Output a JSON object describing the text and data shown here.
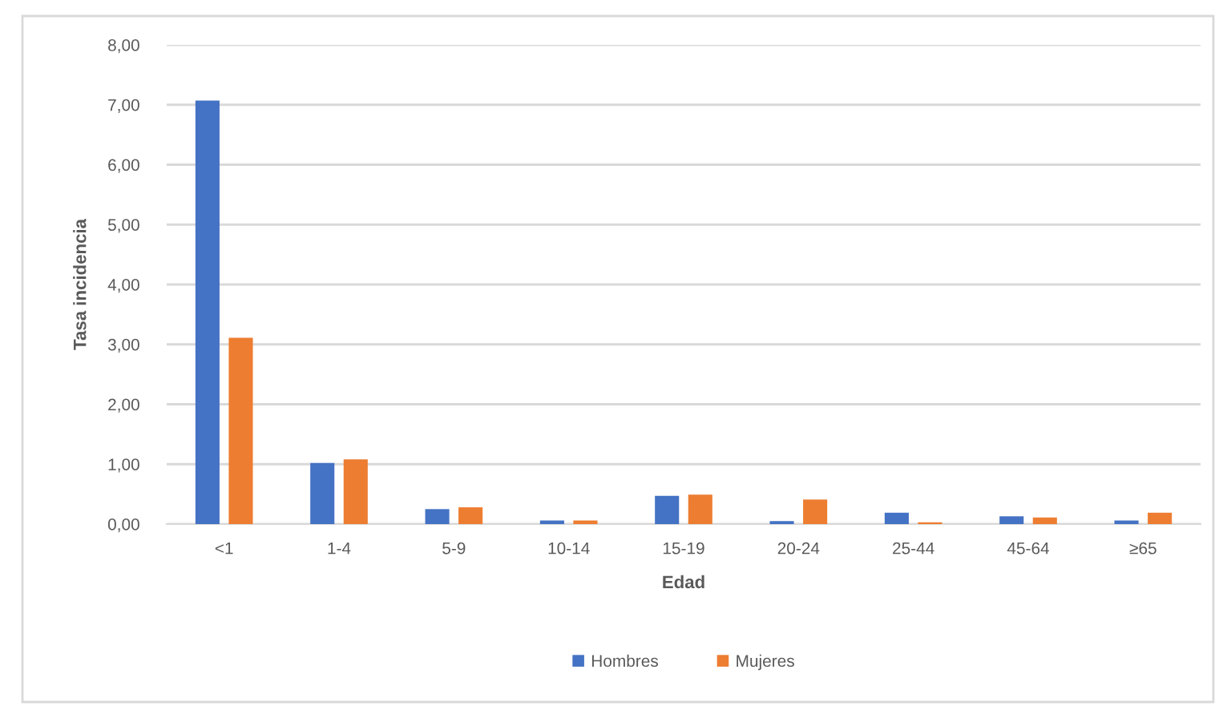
{
  "chart_data": {
    "type": "bar",
    "xlabel": "Edad",
    "ylabel": "Tasa incidencia",
    "categories": [
      "<1",
      "1-4",
      "5-9",
      "10-14",
      "15-19",
      "20-24",
      "25-44",
      "45-64",
      "≥65"
    ],
    "series": [
      {
        "name": "Hombres",
        "color": "#4472c4",
        "values": [
          7.07,
          1.02,
          0.25,
          0.06,
          0.47,
          0.05,
          0.19,
          0.13,
          0.06
        ]
      },
      {
        "name": "Mujeres",
        "color": "#ed7d31",
        "values": [
          3.11,
          1.08,
          0.28,
          0.06,
          0.49,
          0.41,
          0.03,
          0.11,
          0.19
        ]
      }
    ],
    "ylim": [
      0,
      8
    ],
    "yticks": [
      {
        "value": 0,
        "label": "0,00"
      },
      {
        "value": 1,
        "label": "1,00"
      },
      {
        "value": 2,
        "label": "2,00"
      },
      {
        "value": 3,
        "label": "3,00"
      },
      {
        "value": 4,
        "label": "4,00"
      },
      {
        "value": 5,
        "label": "5,00"
      },
      {
        "value": 6,
        "label": "6,00"
      },
      {
        "value": 7,
        "label": "7,00"
      },
      {
        "value": 8,
        "label": "8,00"
      }
    ],
    "grid": "y",
    "legend": "bottom"
  }
}
